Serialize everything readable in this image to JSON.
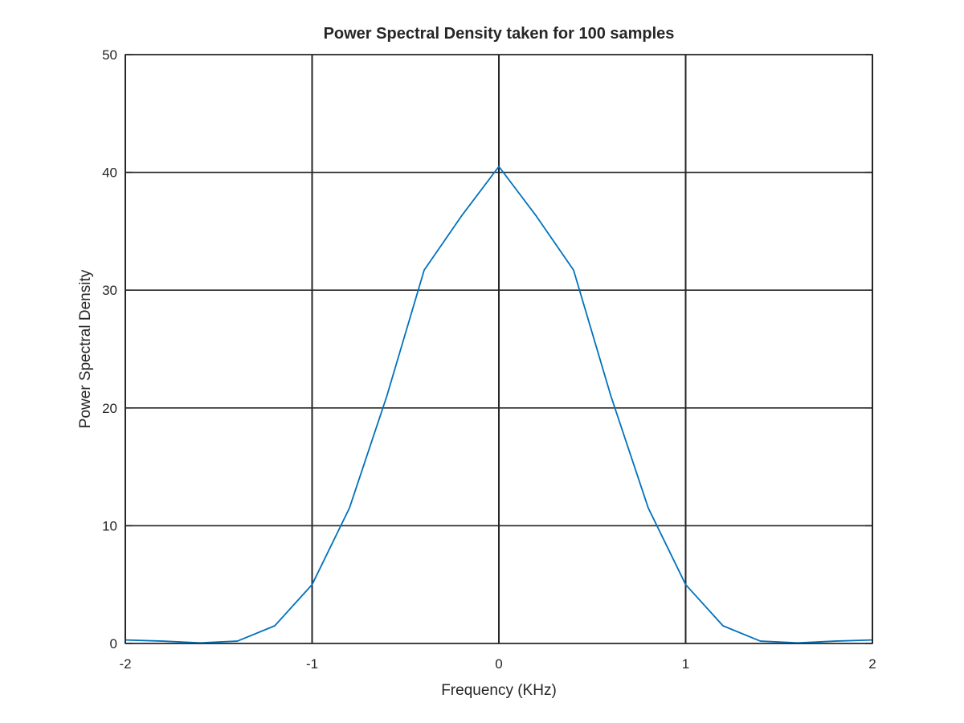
{
  "chart_data": {
    "type": "line",
    "title": "Power Spectral Density taken for 100 samples",
    "xlabel": "Frequency (KHz)",
    "ylabel": "Power Spectral Density",
    "xlim": [
      -2,
      2
    ],
    "ylim": [
      0,
      50
    ],
    "xticks": [
      -2,
      -1,
      0,
      1,
      2
    ],
    "yticks": [
      0,
      10,
      20,
      30,
      40,
      50
    ],
    "xtick_labels": [
      "-2",
      "-1",
      "0",
      "1",
      "2"
    ],
    "ytick_labels": [
      "0",
      "10",
      "20",
      "30",
      "40",
      "50"
    ],
    "grid": true,
    "series": [
      {
        "color": "#0072BD",
        "x": [
          -2.0,
          -1.8,
          -1.6,
          -1.4,
          -1.2,
          -1.0,
          -0.8,
          -0.6,
          -0.4,
          -0.2,
          0.0,
          0.2,
          0.4,
          0.6,
          0.8,
          1.0,
          1.2,
          1.4,
          1.6,
          1.8,
          2.0
        ],
        "y": [
          0.3,
          0.2,
          0.05,
          0.2,
          1.5,
          5.0,
          11.5,
          21.0,
          31.7,
          36.3,
          40.5,
          36.3,
          31.7,
          21.0,
          11.5,
          5.0,
          1.5,
          0.2,
          0.05,
          0.2,
          0.3
        ]
      }
    ]
  }
}
